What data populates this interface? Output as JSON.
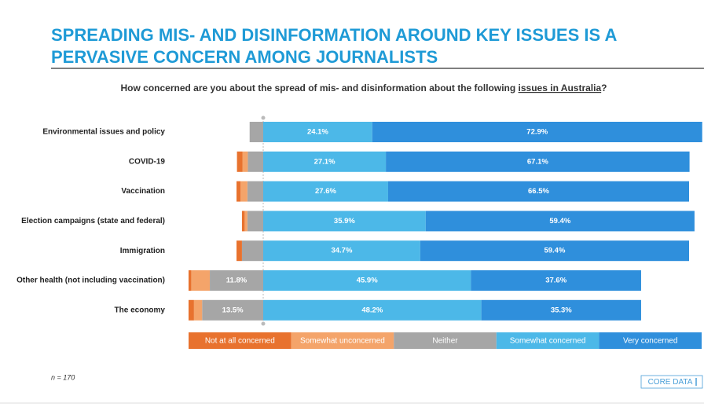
{
  "chart_data": {
    "type": "diverging-bar",
    "title": [
      "SPREADING MIS- AND DISINFORMATION AROUND KEY ISSUES IS A",
      "PERVASIVE CONCERN AMONG JOURNALISTS"
    ],
    "subtitle": [
      "How concerned are you about the spread of mis- and disinformation about the following ",
      "issues in Australia",
      "?"
    ],
    "categories": [
      "Environmental issues and policy",
      "COVID-19",
      "Vaccination",
      "Election campaigns (state and federal)",
      "Immigration",
      "Other health (not including vaccination)",
      "The economy"
    ],
    "series": [
      {
        "name": "Not at all concerned",
        "color": "#e8722e",
        "side": "left",
        "values": [
          0,
          1.2,
          0.9,
          0.6,
          1.2,
          0.6,
          1.2
        ]
      },
      {
        "name": "Somewhat unconcerned",
        "color": "#f4a46a",
        "side": "left",
        "values": [
          0,
          1.2,
          1.5,
          0.6,
          0,
          4.1,
          1.8
        ]
      },
      {
        "name": "Neither",
        "color": "#a6a6a6",
        "side": "left",
        "values": [
          3.0,
          3.4,
          3.5,
          3.5,
          4.7,
          11.8,
          13.5
        ],
        "value_labels": [
          null,
          null,
          null,
          null,
          null,
          "11.8%",
          "13.5%"
        ]
      },
      {
        "name": "Somewhat concerned",
        "color": "#4cb8e8",
        "side": "right",
        "values": [
          24.1,
          27.1,
          27.6,
          35.9,
          34.7,
          45.9,
          48.2
        ],
        "value_labels": [
          "24.1%",
          "27.1%",
          "27.6%",
          "35.9%",
          "34.7%",
          "45.9%",
          "48.2%"
        ]
      },
      {
        "name": "Very concerned",
        "color": "#2f8fdc",
        "side": "right",
        "values": [
          72.9,
          67.1,
          66.5,
          59.4,
          59.4,
          37.6,
          35.3
        ],
        "value_labels": [
          "72.9%",
          "67.1%",
          "66.5%",
          "59.4%",
          "59.4%",
          "37.6%",
          "35.3%"
        ]
      }
    ],
    "note": "n = 170",
    "logo": "CORE DATA"
  }
}
